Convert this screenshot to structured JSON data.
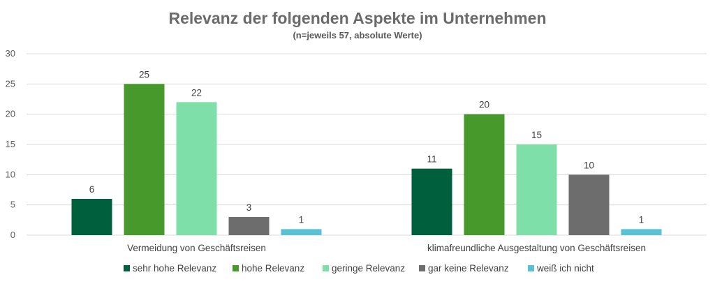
{
  "chart_data": {
    "type": "bar",
    "title": "Relevanz der folgenden Aspekte im Unternehmen",
    "subtitle": "(n=jeweils 57, absolute Werte)",
    "categories": [
      "Vermeidung von Geschäftsreisen",
      "klimafreundliche Ausgestaltung von Geschäftsreisen"
    ],
    "series": [
      {
        "name": "sehr hohe Relevanz",
        "values": [
          6,
          11
        ],
        "color": "#005f3c"
      },
      {
        "name": "hohe Relevanz",
        "values": [
          25,
          20
        ],
        "color": "#48992c"
      },
      {
        "name": "geringe Relevanz",
        "values": [
          22,
          15
        ],
        "color": "#7fdfa9"
      },
      {
        "name": "gar keine Relevanz",
        "values": [
          3,
          10
        ],
        "color": "#6d6d6d"
      },
      {
        "name": "weiß ich nicht",
        "values": [
          1,
          1
        ],
        "color": "#5ac1d2"
      }
    ],
    "ylim": [
      0,
      30
    ],
    "yticks": [
      "0",
      "5",
      "10",
      "15",
      "20",
      "25",
      "30"
    ],
    "grid": true,
    "legend_position": "bottom"
  }
}
